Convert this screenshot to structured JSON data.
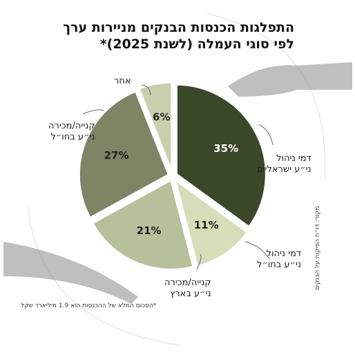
{
  "chart_data": {
    "type": "pie",
    "title": "התפלגות הכנסות הבנקים מניירות ערך לפי סוגי העמלה (לשנת 2025)*",
    "categories": [
      "דמי ניהול\nני״ע ישראליים",
      "דמי ניהול\nני״ע בחו״ל",
      "קנייה/מכירה\nני״ע בארץ",
      "קנייה/מכירה\nני״ע בחו״ל",
      "אחר"
    ],
    "values": [
      35,
      11,
      21,
      27,
      6
    ],
    "value_labels": [
      "35%",
      "11%",
      "21%",
      "27%",
      "6%"
    ],
    "colors": [
      "#3a4829",
      "#d6ddb9",
      "#b6c09a",
      "#7d8565",
      "#c9cfac"
    ],
    "footnote": "*הסכום המלא של ההכנסות הוא 1.9 מיליארד שקל",
    "source": "מקור: דו״ח הפיקוח על הבנקים"
  }
}
